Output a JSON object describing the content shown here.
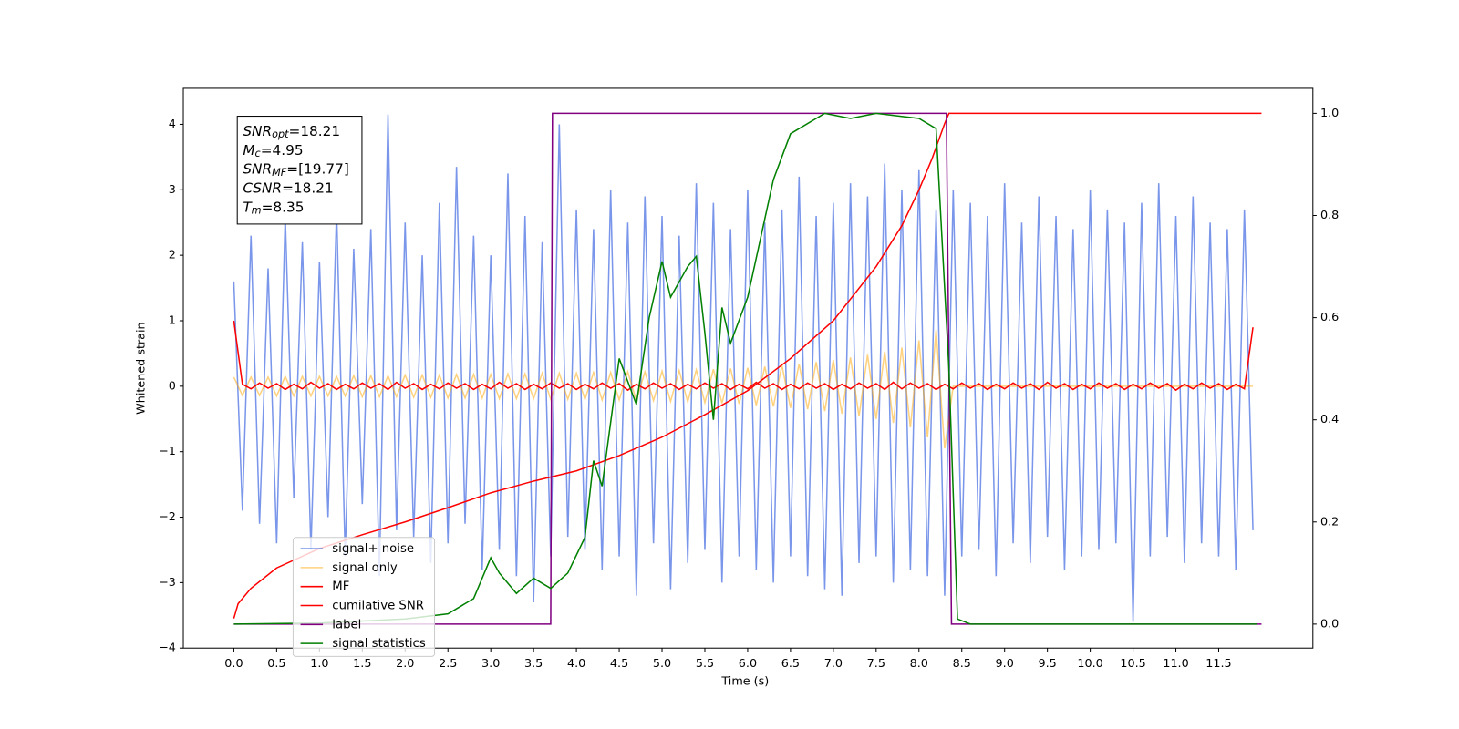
{
  "chart_data": {
    "type": "line",
    "xlabel": "Time (s)",
    "ylabel": "Whitened strain",
    "xlim": [
      -0.59,
      12.6
    ],
    "ylim": [
      -4,
      4.55
    ],
    "y2lim": [
      -0.047,
      1.049
    ],
    "xticks": [
      {
        "value": 0,
        "label": "0.0"
      },
      {
        "value": 0.5,
        "label": "0.5"
      },
      {
        "value": 1,
        "label": "1.0"
      },
      {
        "value": 1.5,
        "label": "1.5"
      },
      {
        "value": 2,
        "label": "2.0"
      },
      {
        "value": 2.5,
        "label": "2.5"
      },
      {
        "value": 3,
        "label": "3.0"
      },
      {
        "value": 3.5,
        "label": "3.5"
      },
      {
        "value": 4,
        "label": "4.0"
      },
      {
        "value": 4.5,
        "label": "4.5"
      },
      {
        "value": 5,
        "label": "5.0"
      },
      {
        "value": 5.5,
        "label": "5.5"
      },
      {
        "value": 6,
        "label": "6.0"
      },
      {
        "value": 6.5,
        "label": "6.5"
      },
      {
        "value": 7,
        "label": "7.0"
      },
      {
        "value": 7.5,
        "label": "7.5"
      },
      {
        "value": 8,
        "label": "8.0"
      },
      {
        "value": 8.5,
        "label": "8.5"
      },
      {
        "value": 9,
        "label": "9.0"
      },
      {
        "value": 9.5,
        "label": "9.5"
      },
      {
        "value": 10,
        "label": "10.0"
      },
      {
        "value": 10.5,
        "label": "10.5"
      },
      {
        "value": 11,
        "label": "11.0"
      },
      {
        "value": 11.5,
        "label": "11.5"
      }
    ],
    "yticks": [
      {
        "value": -4,
        "label": "−4"
      },
      {
        "value": -3,
        "label": "−3"
      },
      {
        "value": -2,
        "label": "−2"
      },
      {
        "value": -1,
        "label": "−1"
      },
      0,
      1,
      2,
      3,
      4
    ],
    "y2ticks": [
      {
        "value": 0,
        "label": "0.0"
      },
      {
        "value": 0.2,
        "label": "0.2"
      },
      {
        "value": 0.4,
        "label": "0.4"
      },
      {
        "value": 0.6,
        "label": "0.6"
      },
      {
        "value": 0.8,
        "label": "0.8"
      },
      {
        "value": 1,
        "label": "1.0"
      }
    ],
    "x": [
      0,
      0.1,
      0.2,
      0.3,
      0.4,
      0.5,
      0.6,
      0.7,
      0.8,
      0.9,
      1,
      1.1,
      1.2,
      1.3,
      1.4,
      1.5,
      1.6,
      1.7,
      1.8,
      1.9,
      2,
      2.1,
      2.2,
      2.3,
      2.4,
      2.5,
      2.6,
      2.7,
      2.8,
      2.9,
      3,
      3.1,
      3.2,
      3.3,
      3.4,
      3.5,
      3.6,
      3.7,
      3.8,
      3.9,
      4,
      4.1,
      4.2,
      4.3,
      4.4,
      4.5,
      4.6,
      4.7,
      4.8,
      4.9,
      5,
      5.1,
      5.2,
      5.3,
      5.4,
      5.5,
      5.6,
      5.7,
      5.8,
      5.9,
      6,
      6.1,
      6.2,
      6.3,
      6.4,
      6.5,
      6.6,
      6.7,
      6.8,
      6.9,
      7,
      7.1,
      7.2,
      7.3,
      7.4,
      7.5,
      7.6,
      7.7,
      7.8,
      7.9,
      8,
      8.1,
      8.2,
      8.3,
      8.4,
      8.5,
      8.6,
      8.7,
      8.8,
      8.9,
      9,
      9.1,
      9.2,
      9.3,
      9.4,
      9.5,
      9.6,
      9.7,
      9.8,
      9.9,
      10,
      10.1,
      10.2,
      10.3,
      10.4,
      10.5,
      10.6,
      10.7,
      10.8,
      10.9,
      11,
      11.1,
      11.2,
      11.3,
      11.4,
      11.5,
      11.6,
      11.7,
      11.8,
      11.9
    ],
    "series": [
      {
        "name": "signal+ noise",
        "color": "#4169e1",
        "alpha": 0.7,
        "values": [
          1.6,
          -1.9,
          2.3,
          -2.1,
          1.8,
          -2.4,
          2.6,
          -1.7,
          2.2,
          -2.5,
          1.9,
          -2.0,
          2.7,
          -2.6,
          2.1,
          -1.8,
          2.4,
          -2.9,
          4.15,
          -2.2,
          2.5,
          -2.3,
          2.0,
          -2.7,
          2.8,
          -2.4,
          3.35,
          -2.1,
          2.3,
          -2.8,
          2.0,
          -2.5,
          3.25,
          -2.9,
          2.6,
          -3.3,
          2.2,
          -2.6,
          4.0,
          -2.3,
          2.7,
          -2.5,
          2.4,
          -2.8,
          3.0,
          -2.6,
          2.5,
          -3.2,
          2.9,
          -2.4,
          2.6,
          -3.1,
          2.3,
          -2.7,
          3.1,
          -2.5,
          2.8,
          -3.0,
          2.4,
          -2.6,
          3.0,
          -2.8,
          2.5,
          -3.0,
          2.7,
          -2.6,
          3.2,
          -2.9,
          2.6,
          -3.1,
          2.8,
          -3.2,
          3.1,
          -2.7,
          2.9,
          -2.6,
          3.4,
          -3.0,
          3.0,
          -2.8,
          3.3,
          -2.9,
          2.7,
          -3.2,
          3.0,
          -2.6,
          2.8,
          -2.5,
          2.6,
          -2.9,
          3.1,
          -2.4,
          2.5,
          -2.7,
          2.9,
          -2.3,
          2.6,
          -2.8,
          2.4,
          -2.6,
          3.0,
          -2.5,
          2.7,
          -2.4,
          2.5,
          -3.6,
          2.8,
          -2.6,
          3.1,
          -2.3,
          2.6,
          -2.7,
          2.9,
          -2.4,
          2.5,
          -2.6,
          2.4,
          -2.8,
          2.7,
          -2.2
        ]
      },
      {
        "name": "signal only",
        "color": "#ffa500",
        "alpha": 0.5,
        "values": [
          0.14,
          -0.14,
          0.14,
          -0.14,
          0.14,
          -0.15,
          0.15,
          -0.15,
          0.15,
          -0.15,
          0.15,
          -0.15,
          0.15,
          -0.15,
          0.16,
          -0.16,
          0.16,
          -0.16,
          0.16,
          -0.16,
          0.17,
          -0.17,
          0.17,
          -0.17,
          0.17,
          -0.18,
          0.18,
          -0.18,
          0.18,
          -0.18,
          0.18,
          -0.19,
          0.19,
          -0.19,
          0.19,
          -0.19,
          0.2,
          -0.2,
          0.2,
          -0.2,
          0.2,
          -0.2,
          0.21,
          -0.21,
          0.21,
          -0.21,
          0.22,
          -0.22,
          0.22,
          -0.22,
          0.23,
          -0.23,
          0.24,
          -0.24,
          0.25,
          -0.25,
          0.26,
          -0.26,
          0.27,
          -0.27,
          0.28,
          -0.29,
          0.3,
          -0.31,
          0.32,
          -0.33,
          0.34,
          -0.35,
          0.37,
          -0.38,
          0.4,
          -0.42,
          0.44,
          -0.46,
          0.48,
          -0.5,
          0.53,
          -0.56,
          0.59,
          -0.63,
          0.7,
          -0.78,
          0.86,
          -0.95,
          0,
          0,
          0,
          0,
          0,
          0,
          0,
          0,
          0,
          0,
          0,
          0,
          0,
          0,
          0,
          0,
          0,
          0,
          0,
          0,
          0,
          0,
          0,
          0,
          0,
          0,
          0,
          0,
          0,
          0,
          0,
          0,
          0,
          0,
          0,
          0
        ]
      },
      {
        "name": "MF",
        "color": "#ff0000",
        "alpha": 1,
        "values": [
          1.0,
          0.03,
          -0.04,
          0.05,
          -0.03,
          0.04,
          -0.05,
          0.03,
          -0.04,
          0.06,
          -0.03,
          0.04,
          -0.05,
          0.03,
          -0.04,
          0.05,
          -0.03,
          0.04,
          -0.05,
          0.06,
          -0.03,
          0.04,
          -0.05,
          0.03,
          -0.04,
          0.05,
          -0.03,
          0.04,
          -0.05,
          0.03,
          -0.04,
          0.06,
          -0.03,
          0.04,
          -0.05,
          0.03,
          -0.04,
          0.05,
          -0.03,
          0.04,
          -0.05,
          0.03,
          -0.04,
          0.05,
          -0.03,
          0.04,
          -0.06,
          0.03,
          -0.04,
          0.05,
          -0.03,
          0.04,
          -0.05,
          0.03,
          -0.04,
          0.05,
          -0.03,
          0.04,
          -0.05,
          0.03,
          -0.04,
          0.06,
          -0.03,
          0.04,
          -0.05,
          0.03,
          -0.04,
          0.05,
          -0.03,
          0.04,
          -0.05,
          0.03,
          -0.04,
          0.05,
          -0.03,
          0.04,
          -0.05,
          0.06,
          -0.04,
          0.05,
          -0.03,
          0.04,
          -0.05,
          0.03,
          -0.04,
          0.05,
          -0.03,
          0.04,
          -0.05,
          0.03,
          -0.04,
          0.05,
          -0.03,
          0.04,
          -0.05,
          0.06,
          -0.03,
          0.04,
          -0.05,
          0.03,
          -0.04,
          0.05,
          -0.03,
          0.04,
          -0.05,
          0.03,
          -0.04,
          0.05,
          -0.03,
          0.04,
          -0.06,
          0.03,
          -0.04,
          0.05,
          -0.03,
          0.04,
          -0.05,
          0.03,
          -0.04,
          0.9
        ]
      },
      {
        "name": "cumilative SNR",
        "color": "#ff0000",
        "alpha": 1,
        "axis": "y2",
        "x": [
          0,
          0.05,
          0.2,
          0.5,
          1,
          1.5,
          2,
          2.5,
          3,
          3.5,
          4,
          4.5,
          5,
          5.5,
          6,
          6.5,
          7,
          7.5,
          7.8,
          8,
          8.15,
          8.3,
          8.35,
          12
        ],
        "values": [
          0.011,
          0.04,
          0.07,
          0.11,
          0.148,
          0.175,
          0.2,
          0.228,
          0.257,
          0.28,
          0.3,
          0.33,
          0.366,
          0.41,
          0.457,
          0.52,
          0.594,
          0.7,
          0.78,
          0.85,
          0.91,
          0.98,
          1.0,
          1.0
        ]
      },
      {
        "name": "label",
        "color": "#800080",
        "alpha": 1,
        "axis": "y2",
        "x": [
          0,
          3.7,
          3.72,
          8.32,
          8.38,
          12
        ],
        "values": [
          0,
          0,
          1,
          1,
          0,
          0
        ]
      },
      {
        "name": "signal statistics",
        "color": "#008000",
        "alpha": 1,
        "axis": "y2",
        "x": [
          0,
          1,
          2,
          2.5,
          2.8,
          3,
          3.1,
          3.3,
          3.5,
          3.7,
          3.9,
          4.1,
          4.2,
          4.3,
          4.5,
          4.7,
          4.85,
          5,
          5.1,
          5.3,
          5.4,
          5.5,
          5.6,
          5.7,
          5.8,
          6,
          6.3,
          6.5,
          6.9,
          7.2,
          7.5,
          8,
          8.2,
          8.35,
          8.45,
          8.6,
          11.95
        ],
        "values": [
          0,
          0.002,
          0.01,
          0.02,
          0.05,
          0.13,
          0.1,
          0.06,
          0.09,
          0.07,
          0.1,
          0.17,
          0.32,
          0.27,
          0.52,
          0.43,
          0.6,
          0.71,
          0.64,
          0.7,
          0.72,
          0.57,
          0.4,
          0.62,
          0.55,
          0.64,
          0.87,
          0.96,
          1.0,
          0.99,
          1.0,
          0.99,
          0.97,
          0.5,
          0.01,
          0,
          0
        ]
      }
    ],
    "annotation": [
      {
        "name": "SNR",
        "sub": "opt",
        "text": "=18.21"
      },
      {
        "name": "M",
        "sub": "c",
        "text": "=4.95"
      },
      {
        "name": "SNR",
        "sub": "MF",
        "text": "=[19.77]"
      },
      {
        "name": "CSNR",
        "text": "=18.21"
      },
      {
        "name": "T",
        "sub": "m",
        "text": "=8.35"
      }
    ],
    "legend": "lower left"
  }
}
